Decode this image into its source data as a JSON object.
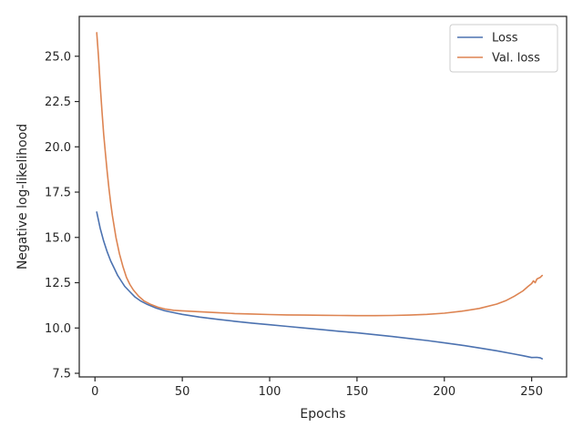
{
  "chart_data": {
    "type": "line",
    "title": "",
    "xlabel": "Epochs",
    "ylabel": "Negative log-likelihood",
    "xlim": [
      -9,
      270
    ],
    "ylim": [
      7.3,
      27.2
    ],
    "xticks": [
      0,
      50,
      100,
      150,
      200,
      250
    ],
    "yticks": [
      7.5,
      10.0,
      12.5,
      15.0,
      17.5,
      20.0,
      22.5,
      25.0
    ],
    "ytick_labels": [
      "7.5",
      "10.0",
      "12.5",
      "15.0",
      "17.5",
      "20.0",
      "22.5",
      "25.0"
    ],
    "grid": false,
    "legend_position": "top-right",
    "series": [
      {
        "name": "Loss",
        "color": "#4c72b0",
        "x": [
          1,
          3,
          5,
          7,
          9,
          11,
          13,
          15,
          17,
          20,
          23,
          26,
          30,
          35,
          40,
          45,
          50,
          60,
          70,
          80,
          90,
          100,
          110,
          120,
          130,
          140,
          150,
          160,
          170,
          180,
          190,
          200,
          210,
          220,
          230,
          240,
          245,
          250,
          253,
          255,
          256
        ],
        "y": [
          16.4,
          15.5,
          14.8,
          14.2,
          13.7,
          13.3,
          12.9,
          12.6,
          12.3,
          12.0,
          11.7,
          11.5,
          11.3,
          11.1,
          10.95,
          10.85,
          10.75,
          10.6,
          10.48,
          10.37,
          10.27,
          10.18,
          10.09,
          10.0,
          9.91,
          9.82,
          9.73,
          9.63,
          9.53,
          9.42,
          9.31,
          9.18,
          9.05,
          8.9,
          8.74,
          8.56,
          8.47,
          8.37,
          8.38,
          8.35,
          8.3
        ]
      },
      {
        "name": "Val. loss",
        "color": "#dd8452",
        "x": [
          1,
          2,
          3,
          4,
          5,
          6,
          7,
          8,
          9,
          10,
          12,
          14,
          16,
          18,
          20,
          22,
          25,
          28,
          32,
          36,
          40,
          45,
          50,
          60,
          70,
          80,
          90,
          100,
          110,
          120,
          130,
          140,
          150,
          160,
          170,
          180,
          190,
          200,
          210,
          220,
          230,
          235,
          240,
          245,
          248,
          250,
          251,
          252,
          253,
          254,
          255,
          256
        ],
        "y": [
          26.3,
          25.0,
          23.4,
          22.0,
          20.7,
          19.6,
          18.6,
          17.7,
          16.9,
          16.2,
          15.0,
          14.1,
          13.4,
          12.8,
          12.4,
          12.1,
          11.75,
          11.5,
          11.3,
          11.15,
          11.05,
          10.98,
          10.95,
          10.9,
          10.85,
          10.8,
          10.77,
          10.74,
          10.72,
          10.71,
          10.7,
          10.69,
          10.68,
          10.68,
          10.69,
          10.71,
          10.75,
          10.82,
          10.93,
          11.08,
          11.32,
          11.5,
          11.75,
          12.05,
          12.3,
          12.45,
          12.6,
          12.5,
          12.7,
          12.75,
          12.8,
          12.9
        ]
      }
    ]
  }
}
